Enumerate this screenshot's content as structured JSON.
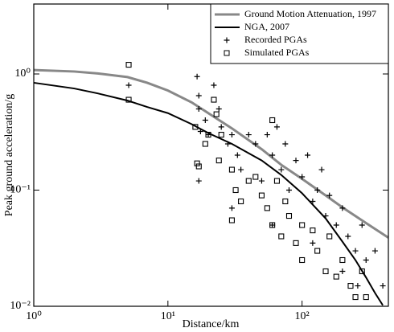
{
  "chart_data": {
    "type": "line",
    "x_label": "Distance/km",
    "y_label": "Peak ground acceleration/g",
    "xscale": "log",
    "yscale": "log",
    "xlim": [
      1,
      440
    ],
    "ylim": [
      0.01,
      4
    ],
    "xticks": [
      {
        "value": 1,
        "label": "10⁰"
      },
      {
        "value": 10,
        "label": "10¹"
      },
      {
        "value": 100,
        "label": "10²"
      }
    ],
    "yticks": [
      {
        "value": 0.01,
        "label": "10⁻²"
      },
      {
        "value": 0.1,
        "label": "10⁻¹"
      },
      {
        "value": 1,
        "label": "10⁰"
      }
    ],
    "legend": "upper right",
    "series": [
      {
        "name": "Ground Motion Attenuation, 1997",
        "style": "line",
        "color": "#888888",
        "x": [
          1,
          2,
          3,
          5,
          7,
          10,
          15,
          20,
          30,
          50,
          70,
          100,
          150,
          200,
          300,
          440
        ],
        "values": [
          1.08,
          1.05,
          1.01,
          0.94,
          0.84,
          0.72,
          0.57,
          0.46,
          0.34,
          0.225,
          0.165,
          0.125,
          0.09,
          0.071,
          0.052,
          0.039
        ]
      },
      {
        "name": "NGA, 2007",
        "style": "line",
        "color": "#000000",
        "x": [
          1,
          2,
          3,
          5,
          7,
          10,
          15,
          20,
          30,
          50,
          70,
          100,
          150,
          200,
          250,
          300,
          350,
          400
        ],
        "values": [
          0.84,
          0.75,
          0.68,
          0.59,
          0.52,
          0.46,
          0.37,
          0.31,
          0.25,
          0.18,
          0.135,
          0.094,
          0.057,
          0.036,
          0.025,
          0.0177,
          0.013,
          0.0102
        ]
      },
      {
        "name": "Recorded PGAs",
        "style": "plus",
        "color": "#000000",
        "x": [
          5.1,
          16.5,
          17,
          17,
          17,
          17.5,
          19,
          20,
          22,
          24,
          25,
          28,
          30,
          33,
          35,
          40,
          45,
          50,
          55,
          60,
          65,
          70,
          75,
          80,
          90,
          100,
          110,
          120,
          130,
          140,
          150,
          160,
          180,
          200,
          220,
          250,
          280,
          300,
          350,
          400,
          30,
          60,
          120,
          200,
          260
        ],
        "values": [
          0.8,
          0.95,
          0.65,
          0.5,
          0.12,
          0.32,
          0.4,
          0.3,
          0.8,
          0.5,
          0.35,
          0.25,
          0.3,
          0.2,
          0.15,
          0.3,
          0.25,
          0.12,
          0.3,
          0.2,
          0.35,
          0.15,
          0.25,
          0.1,
          0.18,
          0.13,
          0.2,
          0.08,
          0.1,
          0.15,
          0.06,
          0.09,
          0.05,
          0.07,
          0.04,
          0.03,
          0.05,
          0.025,
          0.03,
          0.015,
          0.07,
          0.05,
          0.035,
          0.02,
          0.015
        ]
      },
      {
        "name": "Simulated PGAs",
        "style": "square",
        "color": "#000000",
        "x": [
          5.1,
          5.1,
          16,
          16.5,
          17,
          19,
          20,
          22,
          23,
          24,
          25,
          30,
          30,
          32,
          35,
          40,
          45,
          50,
          55,
          60,
          60,
          65,
          70,
          75,
          80,
          90,
          100,
          100,
          120,
          130,
          150,
          160,
          180,
          200,
          230,
          250,
          280,
          300
        ],
        "values": [
          1.2,
          0.6,
          0.35,
          0.17,
          0.16,
          0.25,
          0.3,
          0.6,
          0.45,
          0.18,
          0.3,
          0.15,
          0.055,
          0.1,
          0.08,
          0.12,
          0.13,
          0.09,
          0.07,
          0.4,
          0.05,
          0.12,
          0.04,
          0.08,
          0.06,
          0.035,
          0.05,
          0.025,
          0.045,
          0.03,
          0.02,
          0.04,
          0.018,
          0.025,
          0.015,
          0.012,
          0.02,
          0.012
        ]
      }
    ]
  }
}
